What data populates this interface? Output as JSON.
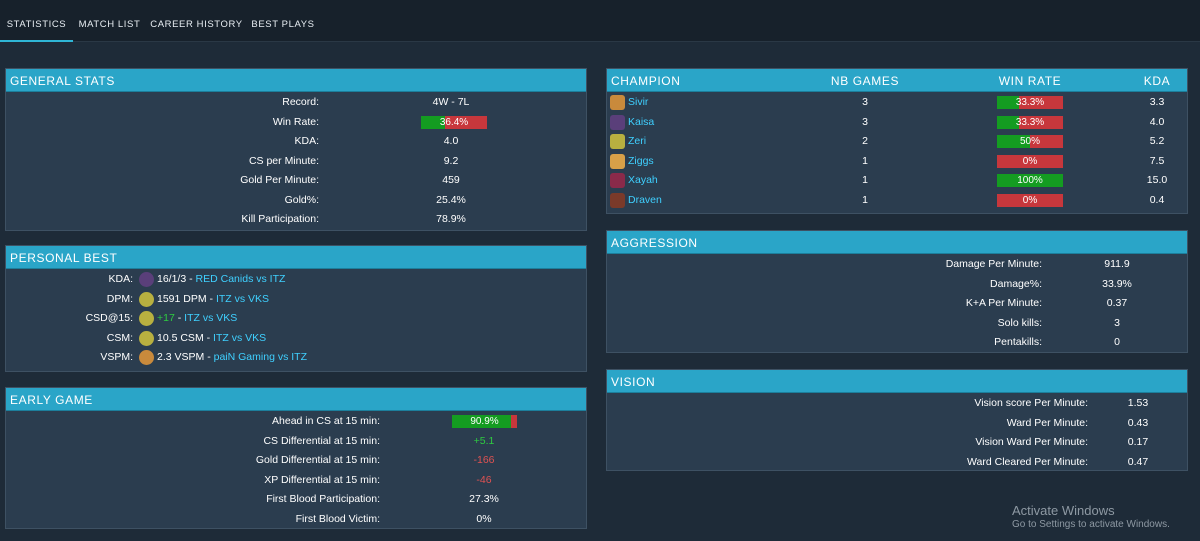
{
  "nav": {
    "tabs": [
      {
        "label": "STATISTICS",
        "active": true
      },
      {
        "label": "MATCH LIST",
        "active": false
      },
      {
        "label": "CAREER HISTORY",
        "active": false
      },
      {
        "label": "BEST PLAYS",
        "active": false
      }
    ]
  },
  "general": {
    "title": "GENERAL STATS",
    "record_label": "Record:",
    "record": "4W - 7L",
    "winrate_label": "Win Rate:",
    "winrate": "36.4%",
    "winrate_pct": 36.4,
    "kda_label": "KDA:",
    "kda": "4.0",
    "cspm_label": "CS per Minute:",
    "cspm": "9.2",
    "gpm_label": "Gold Per Minute:",
    "gpm": "459",
    "goldpct_label": "Gold%:",
    "goldpct": "25.4%",
    "kp_label": "Kill Participation:",
    "kp": "78.9%"
  },
  "personal": {
    "title": "PERSONAL BEST",
    "rows": [
      {
        "label": "KDA:",
        "value": "16/1/3",
        "sep": " - ",
        "link": "RED Canids vs ITZ",
        "icon": "kaisa-icon"
      },
      {
        "label": "DPM:",
        "value": "1591 DPM",
        "sep": " - ",
        "link": "ITZ vs VKS",
        "icon": "zeri-icon"
      },
      {
        "label": "CSD@15:",
        "value": "+17",
        "sep": " - ",
        "link": "ITZ vs VKS",
        "icon": "zeri-icon"
      },
      {
        "label": "CSM:",
        "value": "10.5 CSM",
        "sep": " - ",
        "link": "ITZ vs VKS",
        "icon": "zeri-icon"
      },
      {
        "label": "VSPM:",
        "value": "2.3 VSPM",
        "sep": " - ",
        "link": "paiN Gaming vs ITZ",
        "icon": "sivir-icon"
      }
    ]
  },
  "early": {
    "title": "EARLY GAME",
    "ahead_label": "Ahead in CS at 15 min:",
    "ahead": "90.9%",
    "ahead_pct": 90.9,
    "csd_label": "CS Differential at 15 min:",
    "csd": "+5.1",
    "gd_label": "Gold Differential at 15 min:",
    "gd": "-166",
    "xpd_label": "XP Differential at 15 min:",
    "xpd": "-46",
    "fbp_label": "First Blood Participation:",
    "fbp": "27.3%",
    "fbv_label": "First Blood Victim:",
    "fbv": "0%"
  },
  "champions": {
    "headers": {
      "champion": "CHAMPION",
      "games": "NB GAMES",
      "winrate": "WIN RATE",
      "kda": "KDA"
    },
    "rows": [
      {
        "name": "Sivir",
        "games": "3",
        "winrate": "33.3%",
        "pct": 33.3,
        "kda": "3.3",
        "color": "#c98a3c"
      },
      {
        "name": "Kaisa",
        "games": "3",
        "winrate": "33.3%",
        "pct": 33.3,
        "kda": "4.0",
        "color": "#5a3f7a"
      },
      {
        "name": "Zeri",
        "games": "2",
        "winrate": "50%",
        "pct": 50,
        "kda": "5.2",
        "color": "#b8b040"
      },
      {
        "name": "Ziggs",
        "games": "1",
        "winrate": "0%",
        "pct": 0,
        "kda": "7.5",
        "color": "#d8a048"
      },
      {
        "name": "Xayah",
        "games": "1",
        "winrate": "100%",
        "pct": 100,
        "kda": "15.0",
        "color": "#8a2a4a"
      },
      {
        "name": "Draven",
        "games": "1",
        "winrate": "0%",
        "pct": 0,
        "kda": "0.4",
        "color": "#7a3a2a"
      }
    ]
  },
  "aggression": {
    "title": "AGGRESSION",
    "dpm_label": "Damage Per Minute:",
    "dpm": "911.9",
    "dmgpct_label": "Damage%:",
    "dmgpct": "33.9%",
    "kapm_label": "K+A Per Minute:",
    "kapm": "0.37",
    "solo_label": "Solo kills:",
    "solo": "3",
    "penta_label": "Pentakills:",
    "penta": "0"
  },
  "vision": {
    "title": "VISION",
    "vspm_label": "Vision score Per Minute:",
    "vspm": "1.53",
    "wpm_label": "Ward Per Minute:",
    "wpm": "0.43",
    "vwpm_label": "Vision Ward Per Minute:",
    "vwpm": "0.17",
    "wcpm_label": "Ward Cleared Per Minute:",
    "wcpm": "0.47"
  },
  "watermark": {
    "line1": "Activate Windows",
    "line2": "Go to Settings to activate Windows."
  },
  "colors": {
    "accent": "#2aa5c8",
    "win": "#149c21",
    "loss": "#c7373c",
    "link": "#3fd0ff",
    "positive": "#2ecc40",
    "negative": "#e05252"
  }
}
